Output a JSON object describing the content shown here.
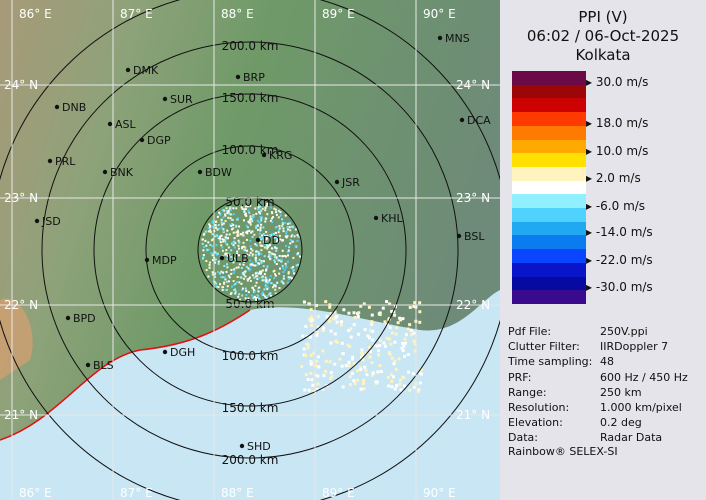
{
  "header": {
    "product": "PPI (V)",
    "datetime": "06:02 / 06-Oct-2025",
    "station": "Kolkata"
  },
  "legend": {
    "colors": [
      "#6b0a46",
      "#9c0606",
      "#cc0202",
      "#ff3a00",
      "#ff7a00",
      "#ffaa00",
      "#ffe000",
      "#fff3c0",
      "#ffffff",
      "#90f0ff",
      "#50d2ff",
      "#20a8f0",
      "#0a7cf0",
      "#0a46ff",
      "#0a14c8",
      "#060aa0",
      "#3a0a8c"
    ],
    "labels": [
      "30.0 m/s",
      "18.0 m/s",
      "10.0 m/s",
      "2.0 m/s",
      "-6.0 m/s",
      "-14.0 m/s",
      "-22.0 m/s",
      "-30.0 m/s"
    ]
  },
  "info": [
    {
      "k": "Pdf File:",
      "v": "250V.ppi"
    },
    {
      "k": "Clutter Filter:",
      "v": "IIRDoppler 7"
    },
    {
      "k": "Time sampling:",
      "v": "48"
    },
    {
      "k": "PRF:",
      "v": "600 Hz / 450 Hz"
    },
    {
      "k": "Range:",
      "v": "250 km"
    },
    {
      "k": "Resolution:",
      "v": "1.000 km/pixel"
    },
    {
      "k": "Elevation:",
      "v": "0.2 deg"
    },
    {
      "k": "Data:",
      "v": "Radar Data"
    }
  ],
  "credit": "Rainbow® SELEX-SI",
  "map": {
    "lon_labels": [
      "86° E",
      "87° E",
      "88° E",
      "89° E",
      "90° E"
    ],
    "lat_labels": [
      "24° N",
      "23° N",
      "22° N",
      "21° N"
    ],
    "range_labels": [
      "50.0 km",
      "100.0 km",
      "150.0 km",
      "200.0 km"
    ],
    "cities": [
      "MNS",
      "DMK",
      "BRP",
      "DNB",
      "SUR",
      "ASL",
      "DGP",
      "DCA",
      "KRG",
      "PRL",
      "BNK",
      "BDW",
      "JSR",
      "JSD",
      "KHL",
      "BSL",
      "MDP",
      "ULB",
      "DD",
      "BPD",
      "DGH",
      "BLS",
      "SHD"
    ]
  }
}
